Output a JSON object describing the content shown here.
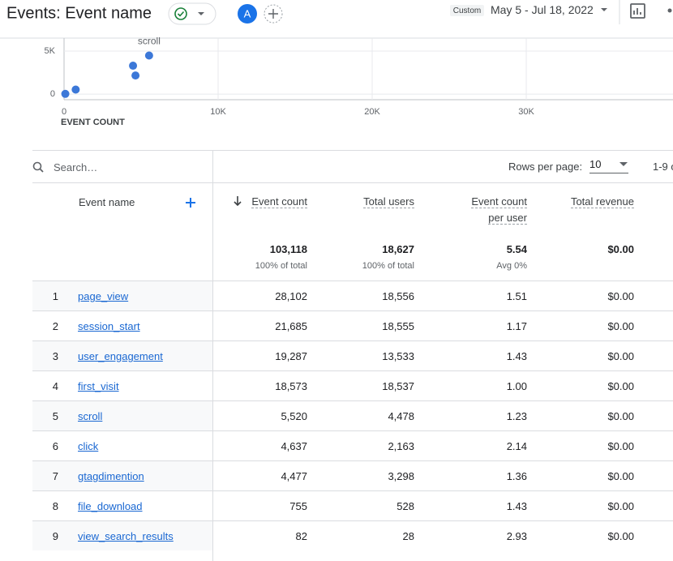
{
  "header": {
    "title": "Events: Event name",
    "avatar": "A",
    "date_badge": "Custom",
    "date_range": "May 5 - Jul 18, 2022"
  },
  "chart_data": {
    "type": "scatter",
    "x_label": "EVENT COUNT",
    "x": [
      82,
      755,
      4477,
      4637,
      5520
    ],
    "values": [
      28,
      528,
      3298,
      2163,
      4478
    ],
    "color": "#3c78d8",
    "annotation": {
      "text": "scroll",
      "index": 4
    },
    "xlim": [
      0,
      40000
    ],
    "xticks": [
      0,
      {
        "value": 10000,
        "label": "10K"
      },
      {
        "value": 20000,
        "label": "20K"
      },
      {
        "value": 30000,
        "label": "30K"
      }
    ],
    "ylim": [
      -650,
      6500
    ],
    "yticks": [
      0,
      {
        "value": 5000,
        "label": "5K"
      }
    ],
    "grid": true
  },
  "table": {
    "search_placeholder": "Search…",
    "rows_per_page_label": "Rows per page:",
    "rows_per_page": "10",
    "pagination": "1-9 o",
    "columns": [
      "Event name",
      "Event count",
      "Total users",
      "Event count per user",
      "Total revenue"
    ],
    "totals": [
      "103,118",
      "18,627",
      "5.54",
      "$0.00"
    ],
    "totals_notes": [
      "100% of total",
      "100% of total",
      "Avg 0%"
    ],
    "rows": [
      [
        "1",
        "page_view",
        "28,102",
        "18,556",
        "1.51",
        "$0.00"
      ],
      [
        "2",
        "session_start",
        "21,685",
        "18,555",
        "1.17",
        "$0.00"
      ],
      [
        "3",
        "user_engagement",
        "19,287",
        "13,533",
        "1.43",
        "$0.00"
      ],
      [
        "4",
        "first_visit",
        "18,573",
        "18,537",
        "1.00",
        "$0.00"
      ],
      [
        "5",
        "scroll",
        "5,520",
        "4,478",
        "1.23",
        "$0.00"
      ],
      [
        "6",
        "click",
        "4,637",
        "2,163",
        "2.14",
        "$0.00"
      ],
      [
        "7",
        "gtagdimention",
        "4,477",
        "3,298",
        "1.36",
        "$0.00"
      ],
      [
        "8",
        "file_download",
        "755",
        "528",
        "1.43",
        "$0.00"
      ],
      [
        "9",
        "view_search_results",
        "82",
        "28",
        "2.93",
        "$0.00"
      ]
    ]
  }
}
